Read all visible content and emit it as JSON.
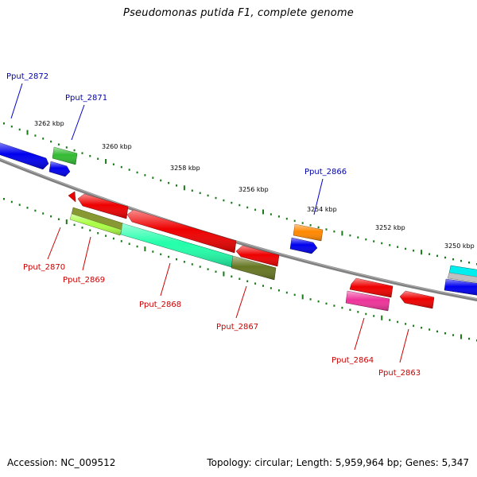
{
  "title": "Pseudomonas putida F1, complete genome",
  "footer": {
    "accession": "Accession: NC_009512",
    "summary": "Topology: circular; Length: 5,959,964 bp; Genes: 5,347"
  },
  "colors": {
    "backbone": "#808080",
    "tick": "#1a7a1a",
    "forward_label": "#0000aa",
    "reverse_label": "#cc0000"
  },
  "scale_labels": [
    "3262 kbp",
    "3260 kbp",
    "3258 kbp",
    "3256 kbp",
    "3254 kbp",
    "3252 kbp",
    "3250 kbp"
  ],
  "forward_genes": [
    {
      "label": "Pput_2872",
      "color": "#0000ee"
    },
    {
      "label": "Pput_2871",
      "color": "#33bb33"
    },
    {
      "label": "Pput_2866",
      "color": "#ff8800"
    }
  ],
  "reverse_genes": [
    {
      "label": "Pput_2870",
      "color": "#ee0000"
    },
    {
      "label": "Pput_2869",
      "color": "#aaff44"
    },
    {
      "label": "Pput_2868",
      "color": "#22ffaa"
    },
    {
      "label": "Pput_2867",
      "color": "#667722"
    },
    {
      "label": "Pput_2864",
      "color": "#ee3399"
    },
    {
      "label": "Pput_2863",
      "color": "#ee0000"
    }
  ]
}
